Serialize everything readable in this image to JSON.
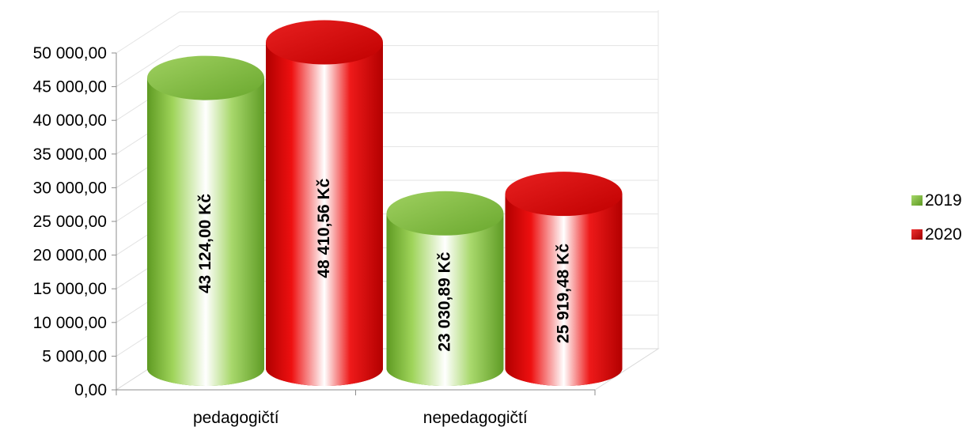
{
  "chart_data": {
    "type": "bar",
    "style": "3d-cylinder",
    "categories": [
      "pedagogičtí",
      "nepedagogičtí"
    ],
    "series": [
      {
        "name": "2019",
        "values": [
          43124.0,
          23030.89
        ],
        "labels": [
          "43 124,00 Kč",
          "23 030,89 Kč"
        ],
        "color": "#7cc242"
      },
      {
        "name": "2020",
        "values": [
          48410.56,
          25919.48
        ],
        "labels": [
          "48 410,56 Kč",
          "25 919,48 Kč"
        ],
        "color": "#e00000"
      }
    ],
    "y_ticks": [
      "0,00",
      "5 000,00",
      "10 000,00",
      "15 000,00",
      "20 000,00",
      "25 000,00",
      "30 000,00",
      "35 000,00",
      "40 000,00",
      "45 000,00",
      "50 000,00"
    ],
    "ylim": [
      0,
      50000
    ],
    "grid": true,
    "legend_position": "right"
  }
}
